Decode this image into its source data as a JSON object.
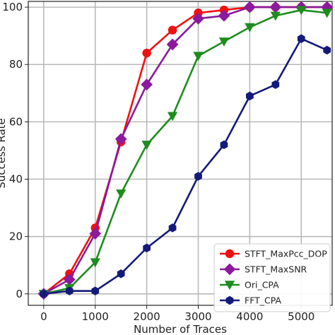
{
  "chart_data": {
    "type": "line",
    "xlabel": "Number of Traces",
    "ylabel": "Success Rate",
    "xlim": [
      -300,
      5600
    ],
    "ylim": [
      -4,
      102
    ],
    "xticks": [
      0,
      1000,
      2000,
      3000,
      4000,
      5000
    ],
    "yticks": [
      0,
      20,
      40,
      60,
      80,
      100
    ],
    "grid": true,
    "legend_position": "bottom-right",
    "series": [
      {
        "name": "STFT_MaxPcc_DOP",
        "color": "#ee1111",
        "marker": "circle",
        "x": [
          0,
          500,
          1000,
          1500,
          2000,
          2500,
          3000,
          3500,
          4000,
          4500,
          5000,
          5500
        ],
        "y": [
          0,
          7,
          23,
          53,
          84,
          92,
          98,
          99,
          100,
          100,
          100,
          100
        ]
      },
      {
        "name": "STFT_MaxSNR",
        "color": "#8b1a9c",
        "marker": "diamond",
        "x": [
          0,
          500,
          1000,
          1500,
          2000,
          2500,
          3000,
          3500,
          4000,
          4500,
          5000,
          5500
        ],
        "y": [
          0,
          5,
          21,
          54,
          73,
          87,
          96,
          97,
          100,
          100,
          100,
          100
        ]
      },
      {
        "name": "Ori_CPA",
        "color": "#1e8c1e",
        "marker": "triangle-down",
        "x": [
          0,
          500,
          1000,
          1500,
          2000,
          2500,
          3000,
          3500,
          4000,
          4500,
          5000,
          5500
        ],
        "y": [
          0,
          2,
          11,
          35,
          52,
          62,
          83,
          88,
          93,
          97,
          99,
          98
        ]
      },
      {
        "name": "FFT_CPA",
        "color": "#141a7a",
        "marker": "hexagon",
        "x": [
          0,
          500,
          1000,
          1500,
          2000,
          2500,
          3000,
          3500,
          4000,
          4500,
          5000,
          5500
        ],
        "y": [
          0,
          1,
          1,
          7,
          16,
          23,
          41,
          52,
          69,
          73,
          89,
          85
        ]
      }
    ]
  }
}
